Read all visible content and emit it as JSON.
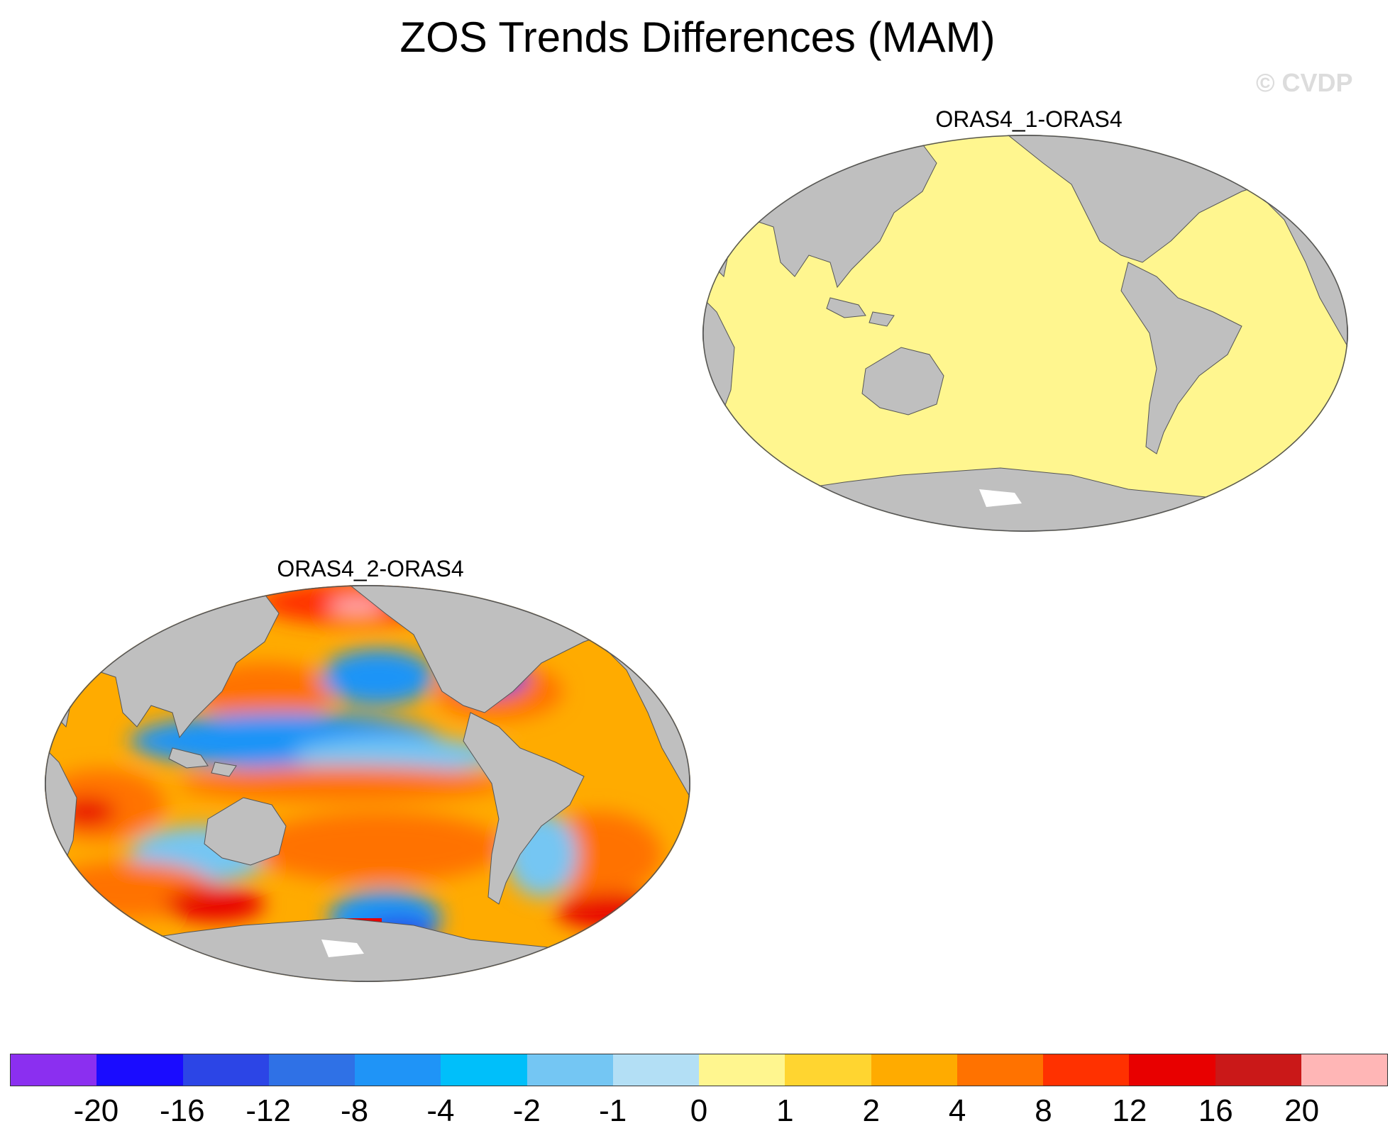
{
  "title": "ZOS Trends Differences (MAM)",
  "watermark": "© CVDP",
  "panels": [
    {
      "title": "ORAS4_1-ORAS4",
      "fill": "#fff68f"
    },
    {
      "title": "ORAS4_2-ORAS4",
      "fill": "mixed"
    }
  ],
  "colors": {
    "land": "#bfbfbf",
    "coast": "#555555"
  },
  "colorbar": {
    "colors": [
      "#8b2ff0",
      "#1a0cff",
      "#2c45e6",
      "#2f71e6",
      "#1f94f7",
      "#00bffa",
      "#74c6f3",
      "#b3dff5",
      "#fff68f",
      "#ffd530",
      "#ffab00",
      "#ff7200",
      "#ff3100",
      "#e80000",
      "#ca1818",
      "#ffb6b6"
    ],
    "labels": [
      "-20",
      "-16",
      "-12",
      "-8",
      "-4",
      "-2",
      "-1",
      "0",
      "1",
      "2",
      "4",
      "8",
      "12",
      "16",
      "20"
    ]
  }
}
